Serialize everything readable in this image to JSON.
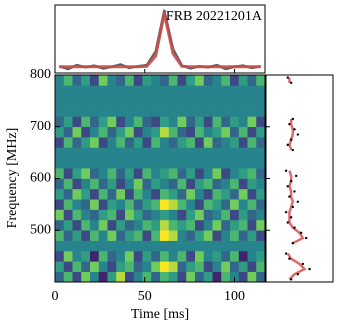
{
  "chart_data": [
    {
      "type": "heatmap",
      "xlabel": "Time [ms]",
      "ylabel": "Frequency [MHz]",
      "xlim": [
        0,
        117
      ],
      "ylim": [
        400,
        800
      ],
      "xticks": [
        0,
        50,
        100
      ],
      "yticks": [
        500,
        600,
        700,
        800
      ],
      "x_bins": [
        0,
        4.875,
        9.75,
        14.625,
        19.5,
        24.375,
        29.25,
        34.125,
        39,
        43.875,
        48.75,
        53.625,
        58.5,
        63.375,
        68.25,
        73.125,
        78,
        82.875,
        87.75,
        92.625,
        97.5,
        102.375,
        107.25,
        112.125,
        117
      ],
      "y_bins": [
        400,
        420,
        440,
        460,
        480,
        500,
        520,
        540,
        560,
        580,
        600,
        620,
        640,
        660,
        680,
        700,
        720,
        740,
        760,
        780,
        800
      ],
      "zlim": [
        0,
        9
      ],
      "colorscale": [
        "#440154",
        "#3b528b",
        "#21918c",
        "#5ec962",
        "#fde725"
      ],
      "z": [
        [
          3,
          6,
          2,
          7,
          4,
          1,
          5,
          8,
          2,
          4,
          6,
          3,
          6,
          5,
          2,
          7,
          3,
          5,
          1,
          6,
          4,
          2,
          7,
          3
        ],
        [
          5,
          2,
          6,
          3,
          7,
          4,
          2,
          5,
          6,
          3,
          4,
          7,
          9,
          8,
          3,
          5,
          6,
          2,
          4,
          7,
          3,
          5,
          2,
          6
        ],
        [
          2,
          7,
          4,
          5,
          1,
          6,
          3,
          4,
          7,
          2,
          5,
          3,
          6,
          4,
          6,
          2,
          7,
          4,
          5,
          3,
          6,
          1,
          4,
          5
        ],
        [
          4,
          4,
          4,
          4,
          4,
          4,
          4,
          4,
          4,
          4,
          4,
          4,
          4,
          4,
          4,
          4,
          4,
          4,
          4,
          4,
          4,
          4,
          4,
          4
        ],
        [
          6,
          3,
          5,
          2,
          6,
          4,
          7,
          3,
          5,
          6,
          2,
          6,
          9,
          8,
          4,
          3,
          5,
          7,
          2,
          4,
          6,
          3,
          5,
          2
        ],
        [
          3,
          5,
          2,
          6,
          4,
          7,
          2,
          5,
          3,
          4,
          6,
          5,
          8,
          6,
          5,
          6,
          2,
          4,
          7,
          3,
          5,
          6,
          2,
          7
        ],
        [
          7,
          2,
          6,
          4,
          3,
          5,
          6,
          2,
          7,
          5,
          3,
          4,
          5,
          4,
          2,
          5,
          7,
          3,
          4,
          6,
          2,
          5,
          3,
          4
        ],
        [
          2,
          6,
          4,
          3,
          7,
          2,
          5,
          4,
          6,
          3,
          5,
          6,
          9,
          8,
          6,
          4,
          2,
          6,
          5,
          3,
          7,
          4,
          6,
          3
        ],
        [
          5,
          3,
          7,
          5,
          2,
          6,
          3,
          7,
          2,
          6,
          4,
          2,
          6,
          5,
          3,
          7,
          4,
          2,
          6,
          5,
          3,
          7,
          2,
          5
        ],
        [
          3,
          6,
          2,
          4,
          6,
          3,
          5,
          2,
          4,
          7,
          3,
          5,
          4,
          3,
          6,
          2,
          5,
          6,
          3,
          4,
          6,
          2,
          5,
          4
        ],
        [
          6,
          2,
          5,
          7,
          3,
          4,
          6,
          3,
          5,
          2,
          6,
          4,
          5,
          6,
          3,
          5,
          2,
          4,
          7,
          2,
          4,
          5,
          6,
          3
        ],
        [
          4,
          4,
          4,
          4,
          4,
          4,
          4,
          4,
          4,
          4,
          4,
          4,
          4,
          4,
          4,
          4,
          4,
          4,
          4,
          4,
          4,
          4,
          4,
          4
        ],
        [
          4,
          4,
          4,
          4,
          4,
          4,
          4,
          4,
          4,
          4,
          4,
          4,
          4,
          4,
          4,
          4,
          4,
          4,
          4,
          4,
          4,
          4,
          4,
          4
        ],
        [
          2,
          6,
          3,
          5,
          7,
          2,
          4,
          6,
          3,
          5,
          2,
          6,
          4,
          3,
          5,
          6,
          2,
          7,
          3,
          4,
          5,
          2,
          6,
          3
        ],
        [
          5,
          3,
          7,
          2,
          4,
          6,
          3,
          5,
          7,
          2,
          4,
          5,
          8,
          6,
          3,
          2,
          6,
          4,
          5,
          7,
          3,
          6,
          2,
          5
        ],
        [
          3,
          5,
          2,
          6,
          3,
          5,
          7,
          2,
          4,
          6,
          3,
          2,
          5,
          4,
          7,
          3,
          5,
          2,
          6,
          3,
          5,
          4,
          7,
          2
        ],
        [
          4,
          4,
          4,
          4,
          4,
          4,
          4,
          4,
          4,
          4,
          4,
          4,
          4,
          4,
          4,
          4,
          4,
          4,
          4,
          4,
          4,
          4,
          4,
          4
        ],
        [
          4,
          4,
          4,
          4,
          4,
          4,
          4,
          4,
          4,
          4,
          4,
          4,
          4,
          4,
          4,
          4,
          4,
          4,
          4,
          4,
          4,
          4,
          4,
          4
        ],
        [
          4,
          4,
          4,
          4,
          4,
          4,
          4,
          4,
          4,
          4,
          4,
          4,
          4,
          4,
          4,
          4,
          4,
          4,
          4,
          4,
          4,
          4,
          4,
          4
        ],
        [
          4,
          6,
          3,
          5,
          2,
          7,
          4,
          3,
          6,
          2,
          5,
          4,
          3,
          6,
          2,
          5,
          7,
          3,
          4,
          6,
          2,
          5,
          3,
          6
        ]
      ]
    },
    {
      "type": "line",
      "title": "FRB 20221201A",
      "xlim": [
        0,
        117
      ],
      "ylim": [
        -0.1,
        1.1
      ],
      "xticks": [
        0,
        50,
        100
      ],
      "x": [
        2.4,
        7.3,
        12.2,
        17.1,
        21.9,
        26.8,
        31.7,
        36.6,
        41.4,
        46.3,
        51.2,
        56.1,
        60.9,
        65.8,
        70.7,
        75.6,
        80.4,
        85.3,
        90.2,
        95.1,
        99.9,
        104.8,
        109.7,
        114.6
      ],
      "series": [
        {
          "color": "#606060",
          "values": [
            0.02,
            -0.03,
            0.04,
            0.0,
            0.03,
            -0.02,
            0.01,
            0.05,
            -0.01,
            0.02,
            0.04,
            0.28,
            1.0,
            0.32,
            0.03,
            -0.02,
            0.02,
            0.0,
            0.04,
            -0.03,
            0.01,
            0.03,
            -0.01,
            0.02
          ]
        },
        {
          "color": "#c94b4b",
          "values": [
            0.01,
            0.01,
            0.01,
            0.01,
            0.01,
            0.01,
            0.01,
            0.01,
            0.01,
            0.01,
            0.02,
            0.2,
            0.95,
            0.24,
            0.02,
            0.01,
            0.01,
            0.01,
            0.01,
            0.01,
            0.01,
            0.01,
            0.01,
            0.01
          ]
        }
      ]
    },
    {
      "type": "scatter",
      "xlim": [
        -1,
        3
      ],
      "ylim": [
        400,
        800
      ],
      "yticks": [
        500,
        600,
        700,
        800
      ],
      "color": "#000000",
      "model_color": "#e06a6a",
      "y": [
        405,
        415,
        425,
        435,
        445,
        455,
        465,
        475,
        485,
        495,
        505,
        515,
        525,
        535,
        545,
        555,
        565,
        575,
        585,
        595,
        605,
        615,
        625,
        635,
        645,
        655,
        665,
        675,
        685,
        695,
        705,
        715,
        725,
        735,
        745,
        755,
        765,
        775,
        785,
        795
      ],
      "values": [
        0.5,
        0.9,
        1.6,
        1.2,
        0.4,
        0.2,
        null,
        0.6,
        1.4,
        1.1,
        0.7,
        0.3,
        0.5,
        0.2,
        0.6,
        0.9,
        0.4,
        0.7,
        0.3,
        0.5,
        0.8,
        0.2,
        null,
        null,
        null,
        0.6,
        0.3,
        0.5,
        0.9,
        0.7,
        0.4,
        0.6,
        null,
        null,
        null,
        null,
        null,
        null,
        0.5,
        0.3
      ],
      "model": [
        0.4,
        0.7,
        1.3,
        1.0,
        0.5,
        0.3,
        null,
        0.6,
        1.2,
        1.0,
        0.6,
        0.4,
        0.4,
        0.4,
        0.5,
        0.6,
        0.5,
        0.5,
        0.4,
        0.5,
        0.5,
        0.4,
        null,
        null,
        null,
        0.5,
        0.4,
        0.5,
        0.6,
        0.6,
        0.5,
        0.5,
        null,
        null,
        null,
        null,
        null,
        null,
        0.4,
        0.4
      ]
    }
  ]
}
